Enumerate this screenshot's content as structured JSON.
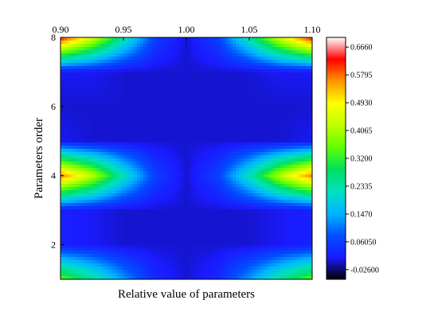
{
  "chart_data": {
    "type": "heatmap",
    "title": "",
    "xlabel": "Relative value of parameters",
    "ylabel": "Parameters order",
    "xlim": [
      0.9,
      1.1
    ],
    "ylim": [
      1,
      8
    ],
    "x_ticks": [
      "0.90",
      "0.95",
      "1.00",
      "1.05",
      "1.10"
    ],
    "y_ticks": [
      "2",
      "4",
      "6",
      "8"
    ],
    "x_tick_values": [
      0.9,
      0.95,
      1.0,
      1.05,
      1.1
    ],
    "y_tick_values": [
      2,
      4,
      6,
      8
    ],
    "colorbar": {
      "labels": [
        "0.6660",
        "0.5795",
        "0.4930",
        "0.4065",
        "0.3200",
        "0.2335",
        "0.1470",
        "0.06050",
        "-0.02600"
      ],
      "values": [
        0.666,
        0.5795,
        0.493,
        0.4065,
        0.32,
        0.2335,
        0.147,
        0.0605,
        -0.026
      ],
      "min": -0.026,
      "max": 0.666,
      "colors": [
        "#000000",
        "#1a1aff",
        "#0050ff",
        "#00b4ff",
        "#00e0c0",
        "#00e060",
        "#60ff00",
        "#c0ff00",
        "#ffff00",
        "#ff9600",
        "#ff0000",
        "#ffffff"
      ]
    },
    "x": [
      0.9,
      0.925,
      0.95,
      0.975,
      1.0,
      1.025,
      1.05,
      1.075,
      1.1
    ],
    "y": [
      1,
      2,
      3,
      4,
      5,
      6,
      7,
      8
    ],
    "z": [
      [
        0.35,
        0.25,
        0.13,
        0.03,
        0.0,
        0.03,
        0.13,
        0.25,
        0.35
      ],
      [
        0.02,
        0.01,
        0.0,
        0.0,
        0.0,
        0.0,
        0.0,
        0.01,
        0.02
      ],
      [
        0.02,
        0.01,
        0.0,
        0.0,
        0.0,
        0.0,
        0.0,
        0.01,
        0.02
      ],
      [
        0.57,
        0.42,
        0.22,
        0.06,
        0.0,
        0.06,
        0.22,
        0.42,
        0.57
      ],
      [
        0.01,
        0.0,
        0.0,
        0.0,
        0.0,
        0.0,
        0.0,
        0.0,
        0.01
      ],
      [
        0.0,
        0.0,
        0.0,
        0.0,
        0.0,
        0.0,
        0.0,
        0.0,
        0.0
      ],
      [
        0.01,
        0.01,
        0.0,
        0.0,
        0.0,
        0.0,
        0.0,
        0.01,
        0.01
      ],
      [
        0.63,
        0.45,
        0.24,
        0.06,
        0.0,
        0.06,
        0.24,
        0.45,
        0.63
      ]
    ]
  }
}
